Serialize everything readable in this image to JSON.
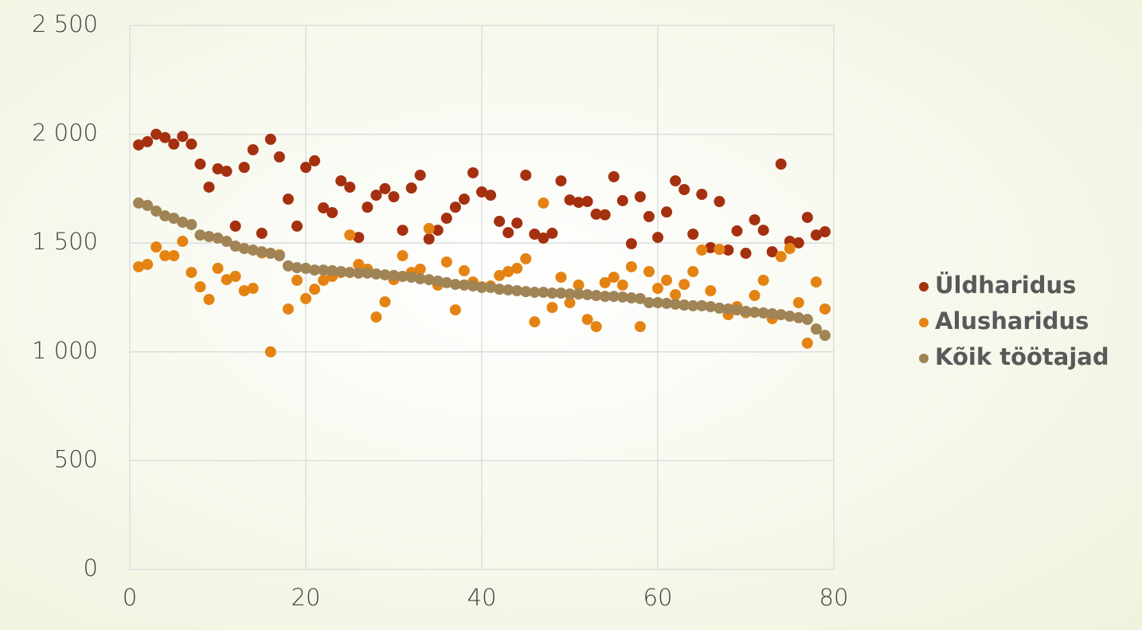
{
  "chart_data": {
    "type": "scatter",
    "x": [
      1,
      2,
      3,
      4,
      5,
      6,
      7,
      8,
      9,
      10,
      11,
      12,
      13,
      14,
      15,
      16,
      17,
      18,
      19,
      20,
      21,
      22,
      23,
      24,
      25,
      26,
      27,
      28,
      29,
      30,
      31,
      32,
      33,
      34,
      35,
      36,
      37,
      38,
      39,
      40,
      41,
      42,
      43,
      44,
      45,
      46,
      47,
      48,
      49,
      50,
      51,
      52,
      53,
      54,
      55,
      56,
      57,
      58,
      59,
      60,
      61,
      62,
      63,
      64,
      65,
      66,
      67,
      68,
      69,
      70,
      71,
      72,
      73,
      74,
      75,
      76,
      77,
      78,
      79
    ],
    "series": [
      {
        "name": "Üldharidus",
        "color": "#a5300f",
        "values": [
          1951,
          1966,
          2000,
          1985,
          1955,
          1990,
          1955,
          1863,
          1757,
          1841,
          1830,
          1578,
          1848,
          1929,
          1545,
          1977,
          1896,
          1702,
          1578,
          1848,
          1878,
          1662,
          1640,
          1786,
          1757,
          1526,
          1665,
          1720,
          1750,
          1713,
          1559,
          1753,
          1812,
          1519,
          1559,
          1614,
          1665,
          1702,
          1823,
          1735,
          1720,
          1600,
          1548,
          1592,
          1812,
          1541,
          1523,
          1545,
          1786,
          1698,
          1687,
          1691,
          1633,
          1630,
          1805,
          1695,
          1497,
          1713,
          1622,
          1526,
          1643,
          1786,
          1746,
          1541,
          1724,
          1479,
          1691,
          1468,
          1556,
          1453,
          1607,
          1559,
          1460,
          1863,
          1508,
          1501,
          1618,
          1537,
          1552
        ]
      },
      {
        "name": "Alusharidus",
        "color": "#e48312",
        "values": [
          1391,
          1402,
          1482,
          1442,
          1442,
          1508,
          1365,
          1299,
          1241,
          1384,
          1332,
          1347,
          1281,
          1292,
          1455,
          1000,
          1446,
          1197,
          1329,
          1245,
          1288,
          1329,
          1347,
          1365,
          1537,
          1402,
          1380,
          1160,
          1230,
          1332,
          1442,
          1365,
          1380,
          1567,
          1307,
          1413,
          1193,
          1373,
          1321,
          1299,
          1303,
          1351,
          1369,
          1384,
          1428,
          1138,
          1684,
          1204,
          1343,
          1226,
          1307,
          1149,
          1116,
          1318,
          1343,
          1307,
          1391,
          1116,
          1369,
          1292,
          1329,
          1263,
          1310,
          1369,
          1468,
          1281,
          1471,
          1171,
          1208,
          1180,
          1259,
          1329,
          1153,
          1438,
          1475,
          1226,
          1040,
          1321,
          1197
        ]
      },
      {
        "name": "Kõik töötajad",
        "color": "#a08455",
        "values": [
          1684,
          1673,
          1647,
          1625,
          1614,
          1596,
          1585,
          1537,
          1530,
          1523,
          1508,
          1486,
          1475,
          1468,
          1460,
          1453,
          1442,
          1395,
          1387,
          1384,
          1376,
          1376,
          1373,
          1369,
          1365,
          1362,
          1362,
          1358,
          1354,
          1351,
          1347,
          1343,
          1336,
          1332,
          1325,
          1318,
          1310,
          1307,
          1303,
          1296,
          1296,
          1288,
          1285,
          1281,
          1277,
          1274,
          1274,
          1270,
          1270,
          1266,
          1266,
          1263,
          1259,
          1255,
          1255,
          1252,
          1248,
          1245,
          1226,
          1226,
          1223,
          1219,
          1215,
          1212,
          1212,
          1208,
          1201,
          1197,
          1193,
          1186,
          1182,
          1179,
          1175,
          1171,
          1164,
          1157,
          1149,
          1105,
          1076
        ]
      }
    ],
    "xlim": [
      0,
      80
    ],
    "xticks": [
      0,
      20,
      40,
      60,
      80
    ],
    "ylim": [
      0,
      2500
    ],
    "yticks": [
      0,
      500,
      {
        "value": 1000,
        "label": "1 000"
      },
      {
        "value": 1500,
        "label": "1 500"
      },
      {
        "value": 2000,
        "label": "2 000"
      },
      {
        "value": 2500,
        "label": "2 500"
      }
    ],
    "grid": true,
    "legend": "right"
  }
}
